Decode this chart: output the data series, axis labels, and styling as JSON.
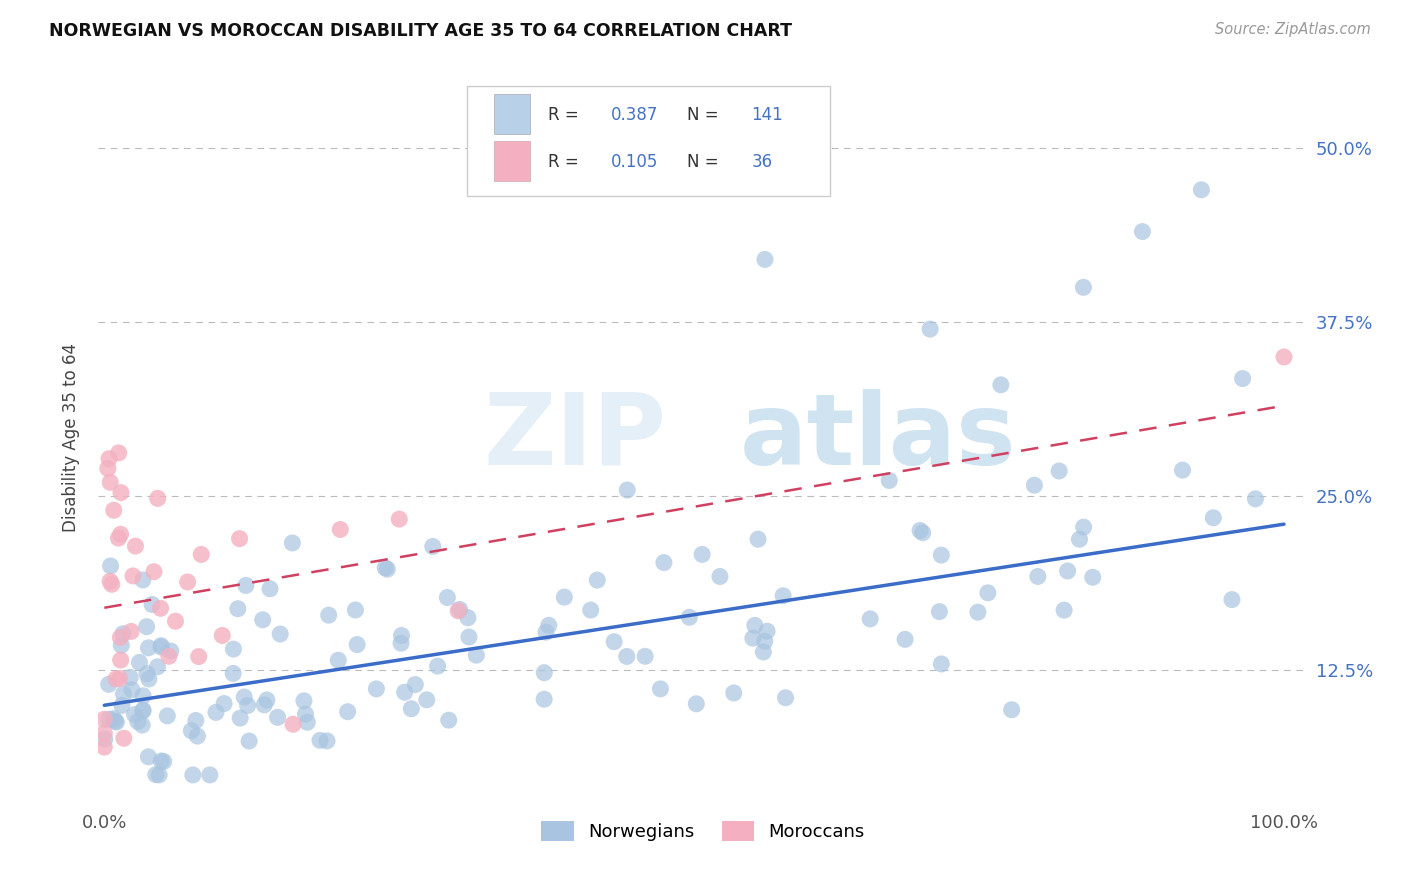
{
  "title": "NORWEGIAN VS MOROCCAN DISABILITY AGE 35 TO 64 CORRELATION CHART",
  "source": "Source: ZipAtlas.com",
  "ylabel": "Disability Age 35 to 64",
  "watermark": "ZIPat las",
  "r_norwegian": 0.387,
  "n_norwegian": 141,
  "r_moroccan": 0.105,
  "n_moroccan": 36,
  "xlim": [
    0.0,
    1.0
  ],
  "ylim": [
    0.03,
    0.55
  ],
  "xtick_labels": [
    "0.0%",
    "100.0%"
  ],
  "ytick_labels": [
    "12.5%",
    "25.0%",
    "37.5%",
    "50.0%"
  ],
  "ytick_values": [
    0.125,
    0.25,
    0.375,
    0.5
  ],
  "color_norwegian": "#a8c4e0",
  "color_moroccan": "#f4b0c0",
  "line_color_norwegian": "#3a6cc8",
  "line_color_moroccan": "#d04060",
  "background_color": "#ffffff",
  "legend_box_color_norwegian": "#b8d0e8",
  "legend_box_color_moroccan": "#f4b0c0",
  "nor_line_start_y": 0.1,
  "nor_line_end_y": 0.23,
  "mor_line_start_y": 0.17,
  "mor_line_end_y": 0.315
}
